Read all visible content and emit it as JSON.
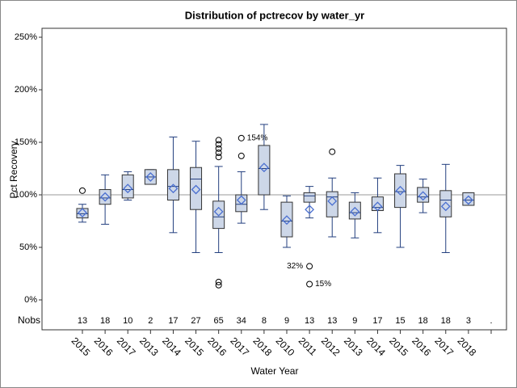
{
  "chart_data": {
    "type": "box",
    "title": "Distribution of pctrecov by water_yr",
    "xlabel": "Water Year",
    "ylabel": "Pct Recovery",
    "nobs_label": "Nobs",
    "ylim": [
      -10,
      258.5
    ],
    "yticks": [
      {
        "value": 0,
        "label": "0%"
      },
      {
        "value": 50,
        "label": "50%"
      },
      {
        "value": 100,
        "label": "100%"
      },
      {
        "value": 150,
        "label": "150%"
      },
      {
        "value": 200,
        "label": "200%"
      },
      {
        "value": 250,
        "label": "250%"
      }
    ],
    "refline": 100,
    "box_color": "#cdd7e8",
    "edge_color": "#233f7f",
    "mean_color": "#4a6fd0",
    "categories": [
      "2015",
      "2016",
      "2017",
      "2013",
      "2014",
      "2015",
      "2016",
      "2017",
      "2018",
      "2010",
      "2011",
      "2012",
      "2013",
      "2014",
      "2015",
      "2016",
      "2017",
      "2018",
      null
    ],
    "nobs": [
      13,
      18,
      10,
      2,
      17,
      27,
      65,
      34,
      8,
      9,
      13,
      13,
      9,
      17,
      15,
      18,
      18,
      3,
      "."
    ],
    "boxes": [
      {
        "q1": 78,
        "median": 82,
        "q3": 87,
        "whisker_low": 74,
        "whisker_high": 91,
        "mean": 83,
        "outliers": [
          104
        ]
      },
      {
        "q1": 91,
        "median": 97,
        "q3": 105,
        "whisker_low": 72,
        "whisker_high": 119,
        "mean": 98,
        "outliers": []
      },
      {
        "q1": 97,
        "median": 105,
        "q3": 119,
        "whisker_low": 95,
        "whisker_high": 122,
        "mean": 106,
        "outliers": []
      },
      {
        "q1": 110,
        "median": 117,
        "q3": 124,
        "whisker_low": 110,
        "whisker_high": 124,
        "mean": 117,
        "outliers": []
      },
      {
        "q1": 95,
        "median": 108,
        "q3": 124,
        "whisker_low": 64,
        "whisker_high": 155,
        "mean": 106,
        "outliers": []
      },
      {
        "q1": 86,
        "median": 115,
        "q3": 126,
        "whisker_low": 45,
        "whisker_high": 151,
        "mean": 105,
        "outliers": []
      },
      {
        "q1": 68,
        "median": 79,
        "q3": 94,
        "whisker_low": 45,
        "whisker_high": 127,
        "mean": 84,
        "outliers": [
          14,
          17,
          136,
          140,
          144,
          148,
          152
        ]
      },
      {
        "q1": 84,
        "median": 91,
        "q3": 100,
        "whisker_low": 73,
        "whisker_high": 122,
        "mean": 95,
        "outliers": [
          137
        ],
        "labeled_outliers": [
          {
            "value": 154,
            "label": "154%",
            "side": "right"
          }
        ]
      },
      {
        "q1": 100,
        "median": 125,
        "q3": 147,
        "whisker_low": 86,
        "whisker_high": 167,
        "mean": 126,
        "outliers": []
      },
      {
        "q1": 60,
        "median": 75,
        "q3": 93,
        "whisker_low": 50,
        "whisker_high": 99,
        "mean": 76,
        "outliers": []
      },
      {
        "q1": 93,
        "median": 99,
        "q3": 102,
        "whisker_low": 78,
        "whisker_high": 108,
        "mean": 86,
        "outliers": [],
        "labeled_outliers": [
          {
            "value": 32,
            "label": "32%",
            "side": "left"
          },
          {
            "value": 15,
            "label": "15%",
            "side": "right"
          }
        ]
      },
      {
        "q1": 79,
        "median": 98,
        "q3": 103,
        "whisker_low": 60,
        "whisker_high": 116,
        "mean": 94,
        "outliers": [
          141
        ]
      },
      {
        "q1": 77,
        "median": 83,
        "q3": 93,
        "whisker_low": 59,
        "whisker_high": 102,
        "mean": 84,
        "outliers": []
      },
      {
        "q1": 85,
        "median": 88,
        "q3": 98,
        "whisker_low": 64,
        "whisker_high": 116,
        "mean": 89,
        "outliers": []
      },
      {
        "q1": 88,
        "median": 103,
        "q3": 120,
        "whisker_low": 50,
        "whisker_high": 128,
        "mean": 104,
        "outliers": []
      },
      {
        "q1": 93,
        "median": 98,
        "q3": 107,
        "whisker_low": 83,
        "whisker_high": 115,
        "mean": 99,
        "outliers": []
      },
      {
        "q1": 79,
        "median": 95,
        "q3": 104,
        "whisker_low": 45,
        "whisker_high": 129,
        "mean": 89,
        "outliers": []
      },
      {
        "q1": 90,
        "median": 95,
        "q3": 102,
        "whisker_low": 90,
        "whisker_high": 102,
        "mean": 95,
        "outliers": []
      },
      null
    ]
  }
}
